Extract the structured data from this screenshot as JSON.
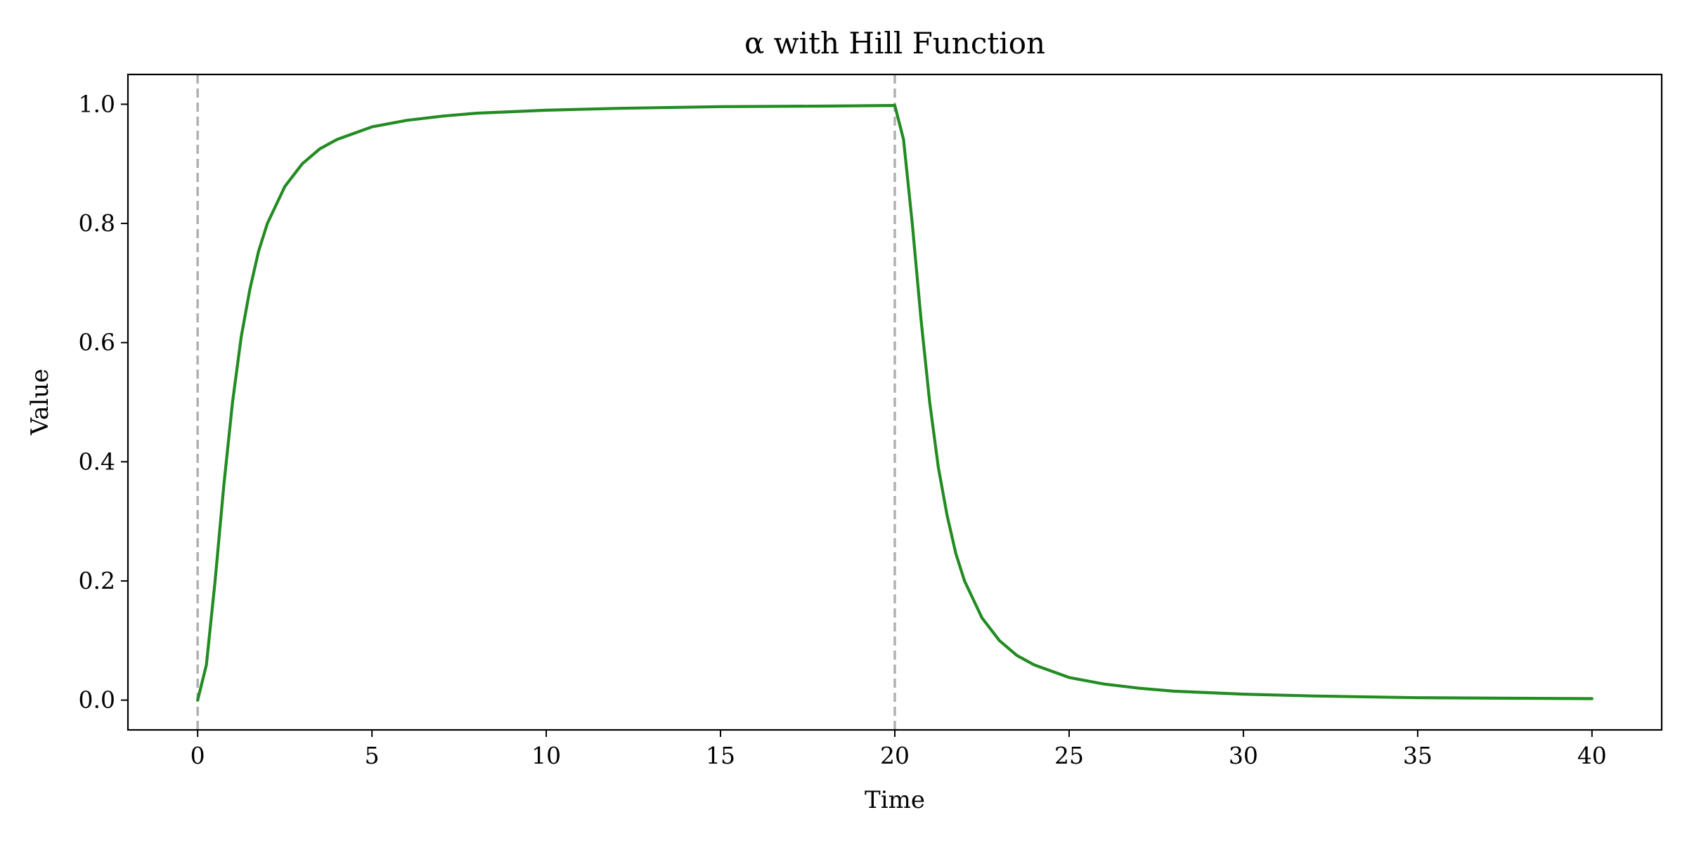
{
  "chart_data": {
    "type": "line",
    "title": "α with Hill Function",
    "xlabel": "Time",
    "ylabel": "Value",
    "xlim": [
      -2,
      42
    ],
    "ylim": [
      -0.05,
      1.05
    ],
    "xticks": [
      0,
      5,
      10,
      15,
      20,
      25,
      30,
      35,
      40
    ],
    "xtick_labels": [
      "0",
      "5",
      "10",
      "15",
      "20",
      "25",
      "30",
      "35",
      "40"
    ],
    "yticks": [
      0.0,
      0.2,
      0.4,
      0.6,
      0.8,
      1.0
    ],
    "ytick_labels": [
      "0.0",
      "0.2",
      "0.4",
      "0.6",
      "0.8",
      "1.0"
    ],
    "grid": false,
    "vlines": [
      {
        "x": 0,
        "style": "dashed",
        "color": "#b0b0b0"
      },
      {
        "x": 20,
        "style": "dashed",
        "color": "#b0b0b0"
      }
    ],
    "series": [
      {
        "color": "#228b22",
        "x": [
          0,
          0.25,
          0.5,
          0.75,
          1,
          1.25,
          1.5,
          1.75,
          2,
          2.5,
          3,
          3.5,
          4,
          5,
          6,
          7,
          8,
          10,
          12,
          15,
          18,
          20,
          20.25,
          20.5,
          20.75,
          21,
          21.25,
          21.5,
          21.75,
          22,
          22.5,
          23,
          23.5,
          24,
          25,
          26,
          27,
          28,
          30,
          32,
          35,
          38,
          40
        ],
        "y": [
          0.0,
          0.059,
          0.2,
          0.36,
          0.5,
          0.61,
          0.69,
          0.754,
          0.8,
          0.862,
          0.9,
          0.925,
          0.941,
          0.962,
          0.973,
          0.98,
          0.985,
          0.99,
          0.993,
          0.996,
          0.997,
          0.998,
          0.941,
          0.8,
          0.64,
          0.5,
          0.39,
          0.31,
          0.246,
          0.2,
          0.138,
          0.1,
          0.075,
          0.059,
          0.038,
          0.027,
          0.02,
          0.015,
          0.01,
          0.007,
          0.004,
          0.003,
          0.0025
        ]
      }
    ]
  }
}
